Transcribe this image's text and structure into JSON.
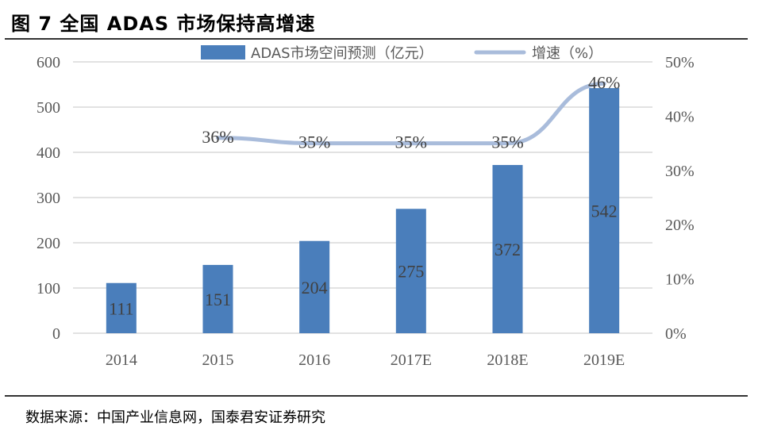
{
  "title": "图 7   全国 ADAS 市场保持高增速",
  "source": "数据来源：中国产业信息网，国泰君安证券研究",
  "chart_data": {
    "type": "bar+line",
    "categories": [
      "2014",
      "2015",
      "2016",
      "2017E",
      "2018E",
      "2019E"
    ],
    "series": [
      {
        "name": "ADAS市场空间预测（亿元）",
        "type": "bar",
        "axis": "left",
        "values": [
          111,
          151,
          204,
          275,
          372,
          542
        ],
        "labels": [
          "111",
          "151",
          "204",
          "275",
          "372",
          "542"
        ],
        "color": "#4a7ebb"
      },
      {
        "name": "增速（%）",
        "type": "line",
        "axis": "right",
        "values": [
          null,
          36,
          35,
          35,
          35,
          46
        ],
        "labels": [
          "",
          "36%",
          "35%",
          "35%",
          "35%",
          "46%"
        ],
        "color": "#a9bcdb"
      }
    ],
    "ylim_left": [
      0,
      600
    ],
    "yticks_left": [
      "0",
      "100",
      "200",
      "300",
      "400",
      "500",
      "600"
    ],
    "ylim_right": [
      0,
      50
    ],
    "yticks_right": [
      "0%",
      "10%",
      "20%",
      "30%",
      "40%",
      "50%"
    ],
    "grid": true,
    "legend_placement": "top"
  }
}
